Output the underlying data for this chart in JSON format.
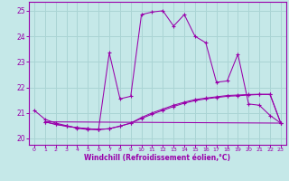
{
  "xlabel": "Windchill (Refroidissement éolien,°C)",
  "ylim": [
    19.75,
    25.35
  ],
  "xlim": [
    -0.5,
    23.5
  ],
  "yticks": [
    20,
    21,
    22,
    23,
    24,
    25
  ],
  "xticks": [
    0,
    1,
    2,
    3,
    4,
    5,
    6,
    7,
    8,
    9,
    10,
    11,
    12,
    13,
    14,
    15,
    16,
    17,
    18,
    19,
    20,
    21,
    22,
    23
  ],
  "bg_color": "#c5e8e8",
  "grid_color": "#aad4d4",
  "line_color": "#9900aa",
  "main_x": [
    0,
    1,
    2,
    3,
    4,
    5,
    6,
    7,
    8,
    9,
    10,
    11,
    12,
    13,
    14,
    15,
    16,
    17,
    18,
    19,
    20,
    21,
    22,
    23
  ],
  "main_y": [
    21.1,
    20.75,
    20.6,
    20.5,
    20.4,
    20.35,
    20.35,
    23.35,
    21.55,
    21.65,
    24.85,
    24.95,
    25.0,
    24.4,
    24.85,
    24.0,
    23.75,
    22.2,
    22.25,
    23.3,
    21.35,
    21.3,
    20.9,
    20.6
  ],
  "line2_x": [
    1,
    2,
    3,
    4,
    5,
    6,
    7,
    8,
    9,
    10,
    11,
    12,
    13,
    14,
    15,
    16,
    17,
    18,
    19,
    20,
    21,
    22,
    23
  ],
  "line2_y": [
    20.65,
    20.55,
    20.48,
    20.42,
    20.38,
    20.35,
    20.38,
    20.48,
    20.6,
    20.78,
    20.95,
    21.1,
    21.25,
    21.38,
    21.48,
    21.55,
    21.6,
    21.65,
    21.67,
    21.7,
    21.72,
    21.72,
    20.6
  ],
  "line3_x": [
    1,
    2,
    3,
    4,
    5,
    6,
    7,
    8,
    9,
    10,
    11,
    12,
    13,
    14,
    15,
    16,
    17,
    18,
    19,
    20,
    21,
    22,
    23
  ],
  "line3_y": [
    20.65,
    20.55,
    20.48,
    20.42,
    20.38,
    20.35,
    20.38,
    20.48,
    20.6,
    20.82,
    21.0,
    21.15,
    21.3,
    21.42,
    21.52,
    21.58,
    21.63,
    21.68,
    21.7,
    21.72,
    21.73,
    21.73,
    20.6
  ],
  "line4_x": [
    1,
    23
  ],
  "line4_y": [
    20.65,
    20.6
  ]
}
